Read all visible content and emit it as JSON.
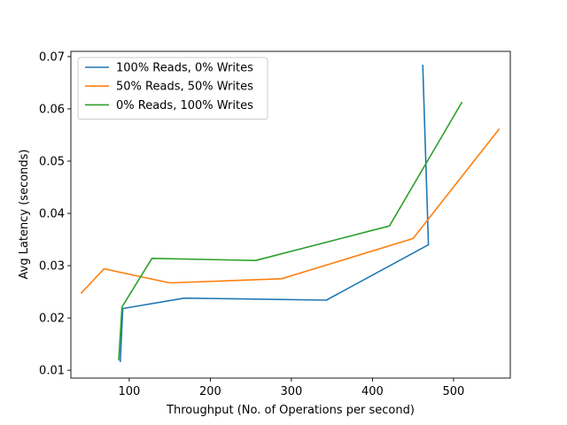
{
  "chart_data": {
    "type": "line",
    "xlabel": "Throughput (No. of Operations per second)",
    "ylabel": "Avg Latency (seconds)",
    "xlim": [
      28,
      570
    ],
    "ylim": [
      0.0085,
      0.071
    ],
    "xticks": [
      100,
      200,
      300,
      400,
      500
    ],
    "yticks": [
      0.01,
      0.02,
      0.03,
      0.04,
      0.05,
      0.06,
      0.07
    ],
    "ytick_labels": [
      "0.01",
      "0.02",
      "0.03",
      "0.04",
      "0.05",
      "0.06",
      "0.07"
    ],
    "grid": false,
    "legend_position": "top-left",
    "series": [
      {
        "name": "100% Reads, 0% Writes",
        "color": "#1f77b4",
        "x": [
          89,
          92,
          168,
          343,
          469,
          462
        ],
        "y": [
          0.0117,
          0.0218,
          0.0238,
          0.0234,
          0.034,
          0.0683
        ]
      },
      {
        "name": "50% Reads, 50% Writes",
        "color": "#ff7f0e",
        "x": [
          41,
          69,
          150,
          288,
          450,
          556
        ],
        "y": [
          0.0248,
          0.0294,
          0.0267,
          0.0275,
          0.0352,
          0.0561
        ]
      },
      {
        "name": "0% Reads, 100% Writes",
        "color": "#2ca02c",
        "x": [
          87,
          91,
          128,
          256,
          421,
          510
        ],
        "y": [
          0.012,
          0.0221,
          0.0314,
          0.031,
          0.0376,
          0.0612
        ]
      }
    ]
  }
}
